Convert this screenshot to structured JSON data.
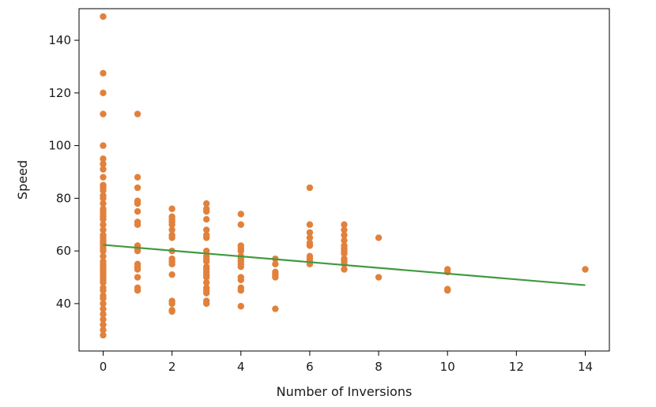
{
  "chart_data": {
    "type": "scatter",
    "xlabel": "Number of Inversions",
    "ylabel": "Speed",
    "xlim": [
      -0.7,
      14.7
    ],
    "ylim": [
      22,
      152
    ],
    "x_ticks": [
      0,
      2,
      4,
      6,
      8,
      10,
      12,
      14
    ],
    "y_ticks": [
      40,
      60,
      80,
      100,
      120,
      140
    ],
    "grid": false,
    "colors": {
      "points": "#e1813c",
      "line": "#3f9a3f",
      "axis": "#000000"
    },
    "series": [
      {
        "kind": "scatter",
        "points": [
          [
            0,
            149
          ],
          [
            0,
            127.5
          ],
          [
            0,
            120
          ],
          [
            0,
            112
          ],
          [
            0,
            100
          ],
          [
            0,
            95
          ],
          [
            0,
            93
          ],
          [
            0,
            91
          ],
          [
            0,
            88
          ],
          [
            0,
            85
          ],
          [
            0,
            84
          ],
          [
            0,
            83
          ],
          [
            0,
            81
          ],
          [
            0,
            80
          ],
          [
            0,
            78
          ],
          [
            0,
            76
          ],
          [
            0,
            75
          ],
          [
            0,
            74
          ],
          [
            0,
            73
          ],
          [
            0,
            72
          ],
          [
            0,
            70
          ],
          [
            0,
            68
          ],
          [
            0,
            66
          ],
          [
            0,
            65
          ],
          [
            0,
            64
          ],
          [
            0,
            63
          ],
          [
            0,
            62
          ],
          [
            0,
            61
          ],
          [
            0,
            60
          ],
          [
            0,
            58
          ],
          [
            0,
            56
          ],
          [
            0,
            55
          ],
          [
            0,
            54
          ],
          [
            0,
            53
          ],
          [
            0,
            52
          ],
          [
            0,
            51
          ],
          [
            0,
            50
          ],
          [
            0,
            49
          ],
          [
            0,
            48
          ],
          [
            0,
            46
          ],
          [
            0,
            45
          ],
          [
            0,
            43
          ],
          [
            0,
            42
          ],
          [
            0,
            40
          ],
          [
            0,
            38
          ],
          [
            0,
            36
          ],
          [
            0,
            34
          ],
          [
            0,
            32
          ],
          [
            0,
            30
          ],
          [
            0,
            28
          ],
          [
            1,
            112
          ],
          [
            1,
            88
          ],
          [
            1,
            84
          ],
          [
            1,
            79
          ],
          [
            1,
            78
          ],
          [
            1,
            75
          ],
          [
            1,
            71
          ],
          [
            1,
            70
          ],
          [
            1,
            62
          ],
          [
            1,
            61
          ],
          [
            1,
            60
          ],
          [
            1,
            55
          ],
          [
            1,
            54
          ],
          [
            1,
            53
          ],
          [
            1,
            50
          ],
          [
            1,
            46
          ],
          [
            1,
            45
          ],
          [
            2,
            76
          ],
          [
            2,
            73
          ],
          [
            2,
            72
          ],
          [
            2,
            71
          ],
          [
            2,
            70
          ],
          [
            2,
            68
          ],
          [
            2,
            66
          ],
          [
            2,
            65
          ],
          [
            2,
            60
          ],
          [
            2,
            57
          ],
          [
            2,
            56
          ],
          [
            2,
            55
          ],
          [
            2,
            51
          ],
          [
            2,
            41
          ],
          [
            2,
            40
          ],
          [
            2,
            37.5
          ],
          [
            2,
            37
          ],
          [
            3,
            78
          ],
          [
            3,
            76
          ],
          [
            3,
            75
          ],
          [
            3,
            72
          ],
          [
            3,
            68
          ],
          [
            3,
            66
          ],
          [
            3,
            65
          ],
          [
            3,
            60
          ],
          [
            3,
            58
          ],
          [
            3,
            57
          ],
          [
            3,
            56
          ],
          [
            3,
            54
          ],
          [
            3,
            53
          ],
          [
            3,
            52
          ],
          [
            3,
            51
          ],
          [
            3,
            50
          ],
          [
            3,
            48
          ],
          [
            3,
            46
          ],
          [
            3,
            45
          ],
          [
            3,
            44
          ],
          [
            3,
            41
          ],
          [
            3,
            40
          ],
          [
            4,
            74
          ],
          [
            4,
            70
          ],
          [
            4,
            62
          ],
          [
            4,
            61
          ],
          [
            4,
            60
          ],
          [
            4,
            58
          ],
          [
            4,
            57
          ],
          [
            4,
            56
          ],
          [
            4,
            55
          ],
          [
            4,
            54
          ],
          [
            4,
            50
          ],
          [
            4,
            49
          ],
          [
            4,
            46
          ],
          [
            4,
            45
          ],
          [
            4,
            39
          ],
          [
            5,
            57
          ],
          [
            5,
            55
          ],
          [
            5,
            52
          ],
          [
            5,
            51
          ],
          [
            5,
            50
          ],
          [
            5,
            38
          ],
          [
            6,
            84
          ],
          [
            6,
            70
          ],
          [
            6,
            67
          ],
          [
            6,
            65
          ],
          [
            6,
            63
          ],
          [
            6,
            62
          ],
          [
            6,
            58
          ],
          [
            6,
            57
          ],
          [
            6,
            56
          ],
          [
            6,
            55
          ],
          [
            7,
            70
          ],
          [
            7,
            68
          ],
          [
            7,
            66
          ],
          [
            7,
            64
          ],
          [
            7,
            62
          ],
          [
            7,
            61
          ],
          [
            7,
            60
          ],
          [
            7,
            59
          ],
          [
            7,
            57
          ],
          [
            7,
            56
          ],
          [
            7,
            55
          ],
          [
            7,
            53
          ],
          [
            8,
            65
          ],
          [
            8,
            50
          ],
          [
            10,
            53
          ],
          [
            10,
            52
          ],
          [
            10,
            45.5
          ],
          [
            10,
            45
          ],
          [
            14,
            53
          ]
        ]
      },
      {
        "kind": "line",
        "points": [
          [
            0,
            62.3
          ],
          [
            14,
            47
          ]
        ]
      }
    ]
  }
}
